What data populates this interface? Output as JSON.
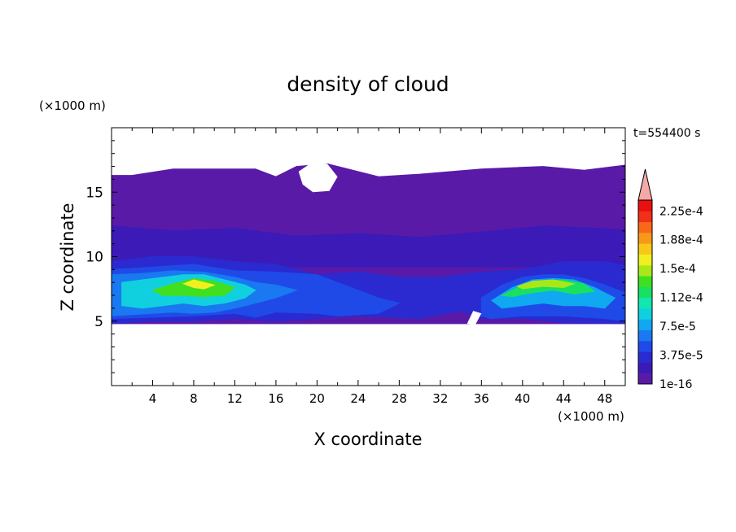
{
  "chart_data": {
    "type": "heatmap",
    "title": "density of cloud",
    "xlabel": "X coordinate",
    "ylabel": "Z coordinate",
    "x_unit": "(×1000 m)",
    "y_unit": "(×1000 m)",
    "time_label": "t=554400 s",
    "xlim": [
      0,
      50
    ],
    "ylim": [
      0,
      20
    ],
    "x_ticks": [
      4,
      8,
      12,
      16,
      20,
      24,
      28,
      32,
      36,
      40,
      44,
      48
    ],
    "y_ticks": [
      5,
      10,
      15
    ],
    "colorbar": {
      "levels": [
        "1e-16",
        "3.75e-5",
        "7.5e-5",
        "1.12e-4",
        "1.5e-4",
        "1.88e-4",
        "2.25e-4"
      ],
      "colors": [
        "#5a1aa8",
        "#3b1ab8",
        "#2a2ad0",
        "#1f4ae8",
        "#1a78f0",
        "#10a8f0",
        "#10d0e0",
        "#10e8b0",
        "#18e060",
        "#40e020",
        "#a8e818",
        "#f0f020",
        "#f8c818",
        "#f89818",
        "#f86818",
        "#f03018",
        "#e81010",
        "#f4a8a8"
      ],
      "extend_top": true
    },
    "regions": [
      {
        "level": 0,
        "x": [
          0,
          2,
          6,
          14,
          16,
          18,
          21,
          26,
          30,
          36,
          42,
          46,
          50,
          50,
          0
        ],
        "z": [
          16.3,
          16.3,
          16.8,
          16.8,
          16.2,
          17.0,
          17.2,
          16.2,
          16.4,
          16.8,
          17.0,
          16.7,
          17.1,
          4.8,
          4.8
        ]
      },
      {
        "level": 1,
        "x": [
          0,
          6,
          12,
          18,
          24,
          30,
          36,
          42,
          50,
          50,
          0
        ],
        "z": [
          12.4,
          12.0,
          12.2,
          11.6,
          11.8,
          11.5,
          11.9,
          12.4,
          12.1,
          9.2,
          9.2
        ]
      },
      {
        "level": 2,
        "x": [
          0,
          4,
          8,
          12,
          16,
          20,
          24,
          28,
          32,
          36,
          40,
          44,
          48,
          50,
          50,
          44,
          40,
          36,
          34,
          30,
          24,
          20,
          16,
          12,
          8,
          4,
          0
        ],
        "z": [
          9.6,
          10.0,
          10.0,
          9.6,
          9.4,
          8.6,
          8.8,
          8.4,
          8.4,
          8.8,
          9.0,
          9.6,
          9.6,
          9.3,
          4.8,
          4.9,
          5.2,
          5.2,
          5.8,
          5.2,
          5.4,
          5.2,
          5.0,
          5.2,
          5.0,
          5.0,
          4.8
        ]
      },
      {
        "level": 3,
        "x": [
          0,
          4,
          8,
          12,
          16,
          20,
          22,
          24,
          26,
          28,
          26,
          22,
          20,
          16,
          14,
          12,
          8,
          4,
          0
        ],
        "z": [
          9.0,
          9.2,
          9.4,
          8.9,
          8.8,
          8.6,
          8.0,
          7.4,
          6.8,
          6.4,
          5.6,
          5.4,
          5.6,
          5.7,
          5.3,
          5.6,
          5.4,
          5.3,
          5.2
        ]
      },
      {
        "level": 4,
        "x": [
          0,
          3,
          6,
          9,
          12,
          14,
          16,
          18,
          16,
          14,
          12,
          10,
          8,
          6,
          4,
          2,
          0
        ],
        "z": [
          8.6,
          8.7,
          8.9,
          8.8,
          8.4,
          8.0,
          7.8,
          7.4,
          6.8,
          6.4,
          6.0,
          5.7,
          5.6,
          5.7,
          5.6,
          5.5,
          5.4
        ]
      },
      {
        "level": 6,
        "x": [
          1,
          3,
          5,
          7,
          9,
          11,
          13,
          14,
          13,
          11,
          9,
          7,
          5,
          3,
          1
        ],
        "z": [
          8.0,
          8.2,
          8.4,
          8.6,
          8.6,
          8.2,
          7.8,
          7.4,
          6.8,
          6.4,
          6.2,
          6.4,
          6.2,
          6.0,
          6.2
        ]
      },
      {
        "level": 9,
        "x": [
          4,
          6,
          8,
          10,
          12,
          11,
          9,
          7,
          5
        ],
        "z": [
          7.4,
          7.9,
          8.3,
          8.1,
          7.6,
          7.0,
          6.9,
          7.0,
          7.0
        ]
      },
      {
        "level": 11,
        "x": [
          7,
          8,
          9,
          10,
          9,
          8
        ],
        "z": [
          7.9,
          8.2,
          8.0,
          7.8,
          7.5,
          7.6
        ]
      },
      {
        "level": 3,
        "x": [
          36,
          38,
          40,
          42,
          44,
          46,
          48,
          50,
          50,
          48,
          44,
          40,
          37,
          36
        ],
        "z": [
          6.8,
          7.8,
          8.4,
          8.6,
          8.6,
          8.3,
          7.8,
          7.2,
          5.0,
          5.2,
          5.4,
          5.4,
          5.2,
          5.4
        ]
      },
      {
        "level": 5,
        "x": [
          37,
          39,
          41,
          43,
          45,
          47,
          49,
          48,
          46,
          44,
          42,
          40,
          38
        ],
        "z": [
          6.6,
          7.6,
          8.2,
          8.3,
          8.2,
          7.6,
          6.8,
          6.0,
          6.2,
          6.2,
          6.4,
          6.2,
          6.0
        ]
      },
      {
        "level": 8,
        "x": [
          38,
          40,
          42,
          44,
          46,
          47,
          45,
          43,
          41,
          39
        ],
        "z": [
          7.0,
          7.8,
          8.1,
          8.2,
          7.9,
          7.3,
          7.1,
          7.4,
          7.2,
          6.9
        ]
      },
      {
        "level": 10,
        "x": [
          39.5,
          41,
          43,
          45,
          44,
          42,
          40
        ],
        "z": [
          7.7,
          8.1,
          8.2,
          7.9,
          7.6,
          7.7,
          7.5
        ]
      }
    ],
    "holes": [
      {
        "x": [
          18.2,
          19.5,
          21,
          22,
          21.2,
          19.6,
          18.6
        ],
        "z": [
          16.6,
          17.3,
          17.2,
          16.2,
          15.1,
          15.0,
          15.6
        ]
      },
      {
        "x": [
          34.6,
          35.2,
          36.0,
          35.4
        ],
        "z": [
          4.8,
          5.8,
          5.6,
          4.7
        ]
      }
    ]
  }
}
